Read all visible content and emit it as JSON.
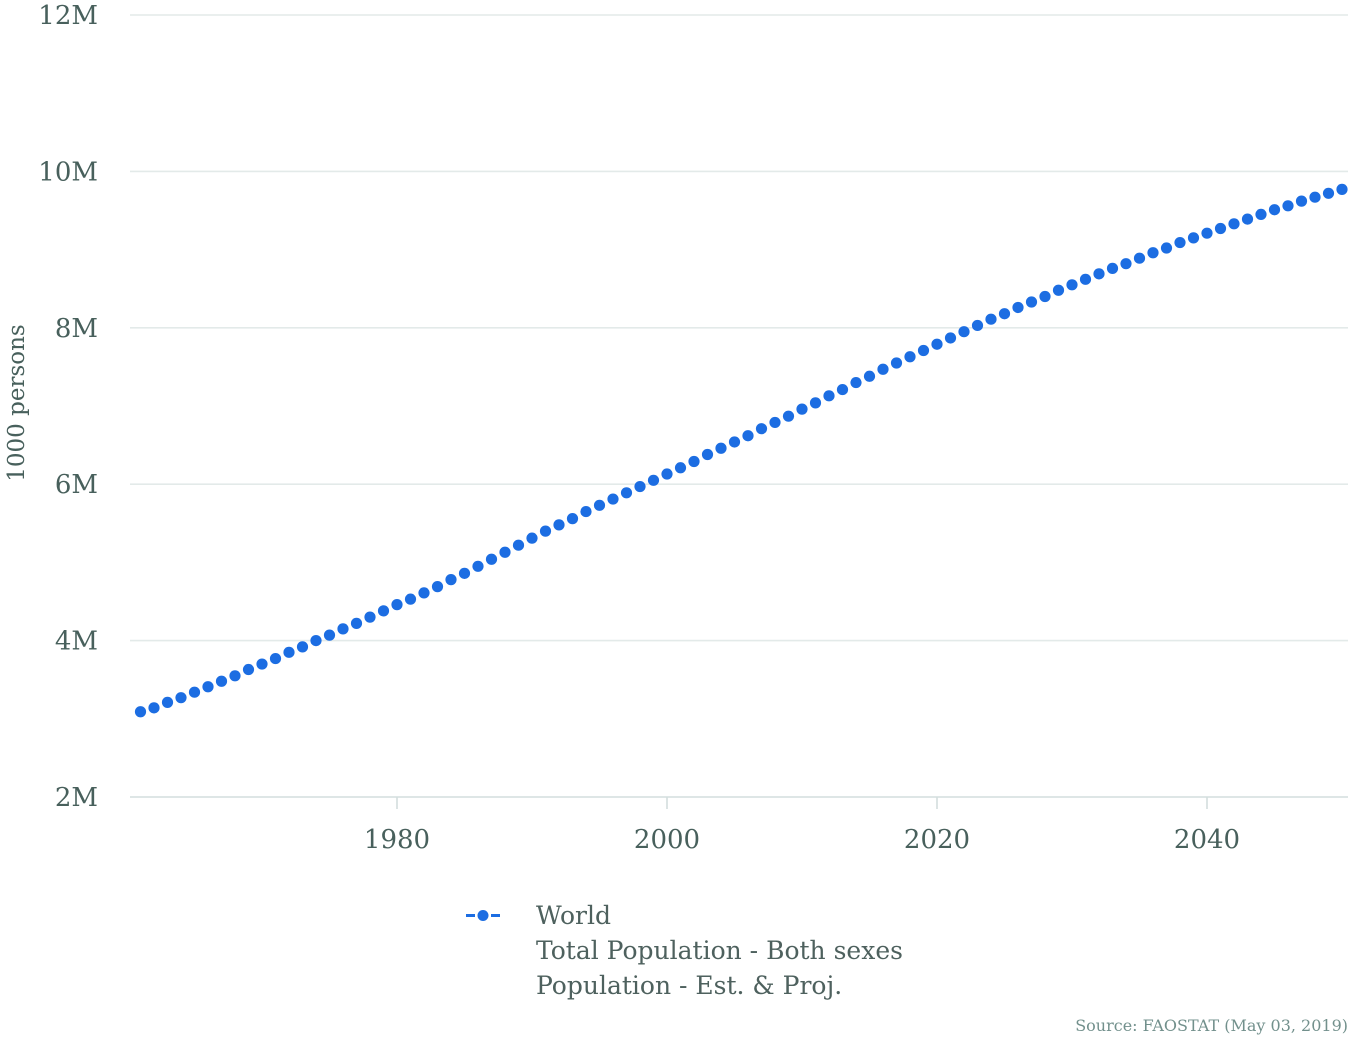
{
  "chart_data": {
    "type": "scatter",
    "title": "",
    "xlabel": "",
    "ylabel": "1000 persons",
    "grid": "horizontal",
    "legend_position": "bottom",
    "xlim": [
      1960,
      2051
    ],
    "ylim": [
      2000000,
      12000000
    ],
    "x_ticks": [
      1980,
      2000,
      2020,
      2040
    ],
    "y_ticks": [
      {
        "label": "2M",
        "value": 2000000
      },
      {
        "label": "4M",
        "value": 4000000
      },
      {
        "label": "6M",
        "value": 6000000
      },
      {
        "label": "8M",
        "value": 8000000
      },
      {
        "label": "10M",
        "value": 10000000
      },
      {
        "label": "12M",
        "value": 12000000
      }
    ],
    "series": [
      {
        "name": "World",
        "color": "#1c6de2",
        "marker": "circle",
        "x": [
          1961,
          1962,
          1963,
          1964,
          1965,
          1966,
          1967,
          1968,
          1969,
          1970,
          1971,
          1972,
          1973,
          1974,
          1975,
          1976,
          1977,
          1978,
          1979,
          1980,
          1981,
          1982,
          1983,
          1984,
          1985,
          1986,
          1987,
          1988,
          1989,
          1990,
          1991,
          1992,
          1993,
          1994,
          1995,
          1996,
          1997,
          1998,
          1999,
          2000,
          2001,
          2002,
          2003,
          2004,
          2005,
          2006,
          2007,
          2008,
          2009,
          2010,
          2011,
          2012,
          2013,
          2014,
          2015,
          2016,
          2017,
          2018,
          2019,
          2020,
          2021,
          2022,
          2023,
          2024,
          2025,
          2026,
          2027,
          2028,
          2029,
          2030,
          2031,
          2032,
          2033,
          2034,
          2035,
          2036,
          2037,
          2038,
          2039,
          2040,
          2041,
          2042,
          2043,
          2044,
          2045,
          2046,
          2047,
          2048,
          2049,
          2050
        ],
        "values": [
          3090000,
          3140000,
          3210000,
          3270000,
          3340000,
          3410000,
          3480000,
          3550000,
          3630000,
          3700000,
          3770000,
          3850000,
          3920000,
          4000000,
          4070000,
          4150000,
          4220000,
          4300000,
          4380000,
          4460000,
          4530000,
          4610000,
          4690000,
          4780000,
          4860000,
          4950000,
          5040000,
          5130000,
          5220000,
          5310000,
          5400000,
          5480000,
          5560000,
          5650000,
          5730000,
          5810000,
          5890000,
          5970000,
          6050000,
          6130000,
          6210000,
          6290000,
          6380000,
          6460000,
          6540000,
          6620000,
          6710000,
          6790000,
          6870000,
          6960000,
          7040000,
          7130000,
          7210000,
          7300000,
          7380000,
          7470000,
          7550000,
          7630000,
          7710000,
          7790000,
          7870000,
          7950000,
          8030000,
          8110000,
          8180000,
          8260000,
          8330000,
          8400000,
          8480000,
          8550000,
          8620000,
          8690000,
          8760000,
          8820000,
          8890000,
          8960000,
          9020000,
          9090000,
          9150000,
          9210000,
          9270000,
          9330000,
          9390000,
          9450000,
          9510000,
          9560000,
          9620000,
          9670000,
          9720000,
          9770000
        ]
      }
    ]
  },
  "legend": {
    "series_name": "World",
    "line2": "Total Population - Both sexes",
    "line3": "Population - Est. & Proj.",
    "marker_style": "dash-dot-dash",
    "marker_color": "#1c6de2"
  },
  "source": {
    "text": "Source: FAOSTAT (May 03, 2019)"
  },
  "colors": {
    "point_blue": "#1c6de2",
    "grid_line": "#e3eae9",
    "axis_line": "#d3dedd",
    "tick_label": "#48605c",
    "legend_text": "#4e615e",
    "source_text": "#72908c"
  }
}
